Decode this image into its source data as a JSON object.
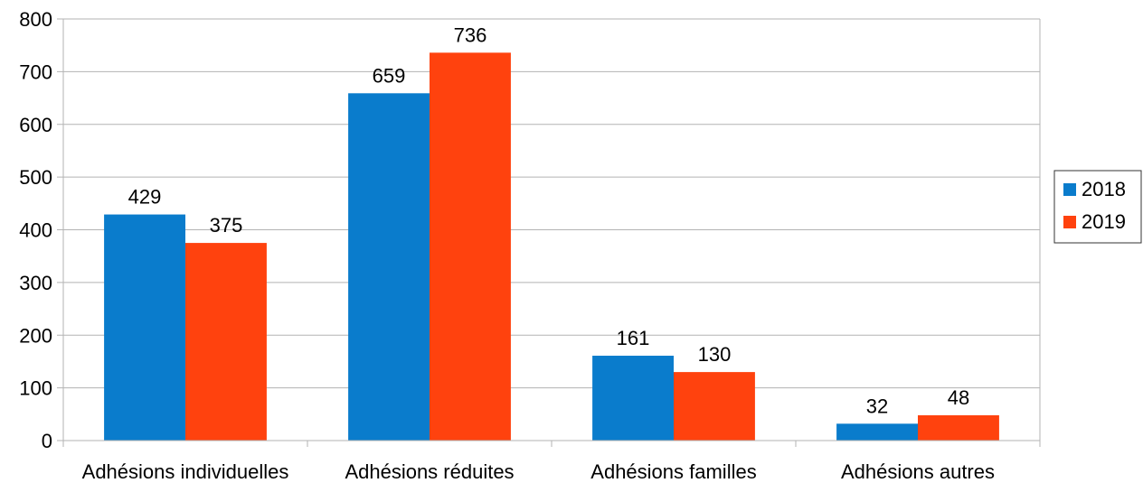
{
  "chart_data": {
    "type": "bar",
    "categories": [
      "Adhésions individuelles",
      "Adhésions réduites",
      "Adhésions familles",
      "Adhésions autres"
    ],
    "series": [
      {
        "name": "2018",
        "values": [
          429,
          659,
          161,
          32
        ],
        "color": "#0a7ccc"
      },
      {
        "name": "2019",
        "values": [
          375,
          736,
          130,
          48
        ],
        "color": "#ff420e"
      }
    ],
    "ylim": [
      0,
      800
    ],
    "yticks": [
      0,
      100,
      200,
      300,
      400,
      500,
      600,
      700,
      800
    ],
    "grid": true,
    "legend_position": "right",
    "data_labels": true
  }
}
